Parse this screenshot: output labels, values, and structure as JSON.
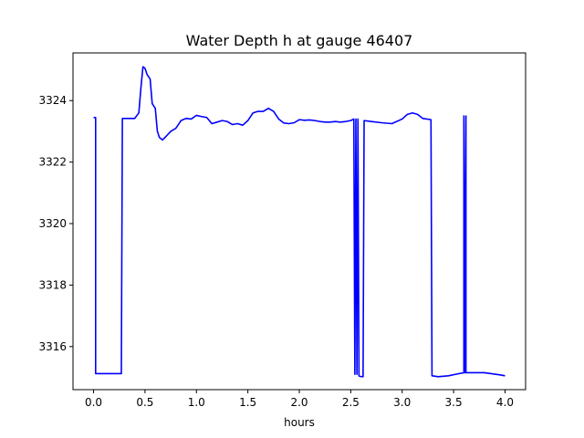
{
  "chart_data": {
    "type": "line",
    "title": "Water Depth h at gauge 46407",
    "xlabel": "hours",
    "ylabel": "",
    "xlim": [
      -0.2,
      4.2
    ],
    "ylim": [
      3314.6,
      3325.55
    ],
    "xticks": [
      0.0,
      0.5,
      1.0,
      1.5,
      2.0,
      2.5,
      3.0,
      3.5,
      4.0
    ],
    "xtick_labels": [
      "0.0",
      "0.5",
      "1.0",
      "1.5",
      "2.0",
      "2.5",
      "3.0",
      "3.5",
      "4.0"
    ],
    "yticks": [
      3316,
      3318,
      3320,
      3322,
      3324
    ],
    "ytick_labels": [
      "3316",
      "3318",
      "3320",
      "3322",
      "3324"
    ],
    "grid": false,
    "series": [
      {
        "color": "#0000ff",
        "x": [
          0.0,
          0.02,
          0.02,
          0.27,
          0.28,
          0.4,
          0.44,
          0.46,
          0.48,
          0.5,
          0.52,
          0.55,
          0.57,
          0.6,
          0.62,
          0.64,
          0.67,
          0.7,
          0.75,
          0.8,
          0.85,
          0.9,
          0.95,
          1.0,
          1.05,
          1.1,
          1.15,
          1.2,
          1.25,
          1.3,
          1.35,
          1.4,
          1.45,
          1.5,
          1.55,
          1.6,
          1.65,
          1.7,
          1.75,
          1.8,
          1.85,
          1.9,
          1.95,
          2.0,
          2.05,
          2.1,
          2.15,
          2.2,
          2.25,
          2.3,
          2.35,
          2.4,
          2.45,
          2.5,
          2.53,
          2.54,
          2.55,
          2.56,
          2.57,
          2.58,
          2.59,
          2.62,
          2.63,
          2.7,
          2.8,
          2.9,
          3.0,
          3.05,
          3.1,
          3.15,
          3.2,
          3.28,
          3.29,
          3.35,
          3.45,
          3.55,
          3.6,
          3.6,
          3.61,
          3.62,
          3.62,
          3.8,
          3.95,
          4.0
        ],
        "y": [
          3323.45,
          3323.45,
          3315.12,
          3315.12,
          3323.42,
          3323.42,
          3323.6,
          3324.4,
          3325.1,
          3325.05,
          3324.85,
          3324.7,
          3323.9,
          3323.75,
          3323.0,
          3322.8,
          3322.72,
          3322.82,
          3323.0,
          3323.1,
          3323.35,
          3323.42,
          3323.4,
          3323.52,
          3323.48,
          3323.45,
          3323.25,
          3323.3,
          3323.35,
          3323.32,
          3323.22,
          3323.25,
          3323.2,
          3323.35,
          3323.6,
          3323.65,
          3323.65,
          3323.75,
          3323.65,
          3323.4,
          3323.27,
          3323.25,
          3323.28,
          3323.38,
          3323.36,
          3323.37,
          3323.35,
          3323.32,
          3323.3,
          3323.3,
          3323.32,
          3323.3,
          3323.32,
          3323.35,
          3323.4,
          3315.1,
          3323.4,
          3315.1,
          3323.4,
          3315.05,
          3315.03,
          3315.02,
          3323.35,
          3323.32,
          3323.28,
          3323.25,
          3323.4,
          3323.55,
          3323.6,
          3323.55,
          3323.42,
          3323.38,
          3315.05,
          3315.02,
          3315.05,
          3315.12,
          3315.15,
          3323.5,
          3315.15,
          3323.5,
          3315.15,
          3315.15,
          3315.08,
          3315.05
        ]
      }
    ]
  }
}
